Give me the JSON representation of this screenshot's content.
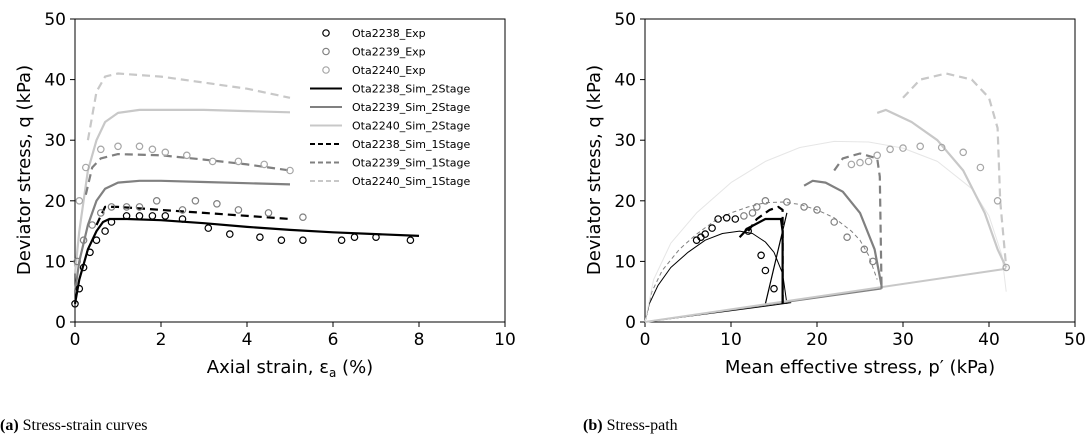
{
  "chart_data": [
    {
      "type": "line",
      "caption_label": "(a)",
      "caption_text": "Stress-strain curves",
      "xlabel": "Axial strain, ε",
      "xlabel_sub": "a",
      "xlabel_unit": " (%)",
      "ylabel": "Deviator stress, q (kPa)",
      "xlim": [
        0,
        10
      ],
      "ylim": [
        0,
        50
      ],
      "xticks": [
        "0",
        "2",
        "4",
        "6",
        "8",
        "10"
      ],
      "yticks": [
        "0",
        "10",
        "20",
        "30",
        "40",
        "50"
      ],
      "legend_position": "upper-right",
      "series": [
        {
          "name": "Ota2238_Exp",
          "kind": "marker",
          "color": "#000000",
          "x": [
            0,
            0.1,
            0.2,
            0.35,
            0.5,
            0.7,
            0.85,
            1.2,
            1.5,
            1.8,
            2.1,
            2.5,
            3.1,
            3.6,
            4.3,
            4.8,
            5.3,
            6.2,
            6.5,
            7.0,
            7.8
          ],
          "y": [
            3,
            5.5,
            9,
            11.5,
            13.5,
            15,
            16.5,
            17.5,
            17.5,
            17.5,
            17.5,
            17,
            15.5,
            14.5,
            14,
            13.5,
            13.5,
            13.5,
            14,
            14,
            13.5
          ]
        },
        {
          "name": "Ota2239_Exp",
          "kind": "marker",
          "color": "#808080",
          "x": [
            0.05,
            0.2,
            0.4,
            0.6,
            0.85,
            1.2,
            1.5,
            1.9,
            2.5,
            2.8,
            3.3,
            3.8,
            4.5,
            5.3
          ],
          "y": [
            10,
            13.5,
            16,
            18,
            19,
            19,
            19,
            20,
            18.5,
            20,
            19.5,
            18.5,
            18,
            17.3
          ]
        },
        {
          "name": "Ota2240_Exp",
          "kind": "marker",
          "color": "#a6a6a6",
          "x": [
            0.1,
            0.25,
            0.6,
            1.0,
            1.5,
            1.8,
            2.1,
            2.6,
            3.2,
            3.8,
            4.4,
            5.0
          ],
          "y": [
            20,
            25.5,
            28.5,
            29,
            29,
            28.5,
            28,
            27.5,
            26.5,
            26.5,
            26,
            25
          ],
          "alt_color": "#8c8c8c"
        },
        {
          "name": "Ota2238_Sim_2Stage",
          "kind": "line",
          "dash": "",
          "color": "#000000",
          "x": [
            0,
            0.1,
            0.3,
            0.5,
            0.65,
            0.8,
            1.2,
            2,
            3,
            4,
            5,
            6,
            7,
            8
          ],
          "y": [
            3,
            7,
            12,
            15,
            16.5,
            17,
            17,
            16.8,
            16.3,
            15.7,
            15.2,
            14.8,
            14.5,
            14.2
          ]
        },
        {
          "name": "Ota2239_Sim_2Stage",
          "kind": "line",
          "dash": "",
          "color": "#808080",
          "x": [
            0,
            0.1,
            0.3,
            0.5,
            0.7,
            1,
            1.5,
            2,
            3,
            4,
            5
          ],
          "y": [
            5,
            10,
            16,
            20,
            22,
            23,
            23.3,
            23.3,
            23.1,
            22.9,
            22.7
          ]
        },
        {
          "name": "Ota2240_Sim_2Stage",
          "kind": "line",
          "dash": "",
          "color": "#c8c8c8",
          "x": [
            0,
            0.1,
            0.3,
            0.5,
            0.7,
            1,
            1.5,
            2,
            3,
            4,
            5
          ],
          "y": [
            8,
            15,
            25,
            30,
            33,
            34.5,
            35,
            35,
            35,
            34.8,
            34.6
          ]
        },
        {
          "name": "Ota2238_Sim_1Stage",
          "kind": "line",
          "dash": "8,5",
          "color": "#000000",
          "x": [
            0.5,
            0.7,
            1,
            2,
            3,
            4,
            5
          ],
          "y": [
            16,
            19,
            19,
            18.5,
            18,
            17.5,
            17
          ]
        },
        {
          "name": "Ota2239_Sim_1Stage",
          "kind": "line",
          "dash": "8,5",
          "color": "#808080",
          "x": [
            0.25,
            0.4,
            0.6,
            1,
            2,
            3,
            4,
            5
          ],
          "y": [
            21,
            25.5,
            27,
            27.7,
            27.5,
            26.8,
            26,
            25
          ]
        },
        {
          "name": "Ota2240_Sim_1Stage",
          "kind": "line",
          "dash": "8,5",
          "color": "#c8c8c8",
          "x": [
            0.3,
            0.5,
            0.7,
            1,
            2,
            3,
            4,
            5
          ],
          "y": [
            30,
            38,
            40.5,
            41,
            40.5,
            39.5,
            38.5,
            37
          ]
        }
      ]
    },
    {
      "type": "line",
      "caption_label": "(b)",
      "caption_text": "Stress-path",
      "xlabel": "Mean effective stress, p′ (kPa)",
      "ylabel": "Deviator stress, q (kPa)",
      "xlim": [
        0,
        50
      ],
      "ylim": [
        0,
        50
      ],
      "xticks": [
        "0",
        "10",
        "20",
        "30",
        "40",
        "50"
      ],
      "yticks": [
        "0",
        "10",
        "20",
        "30",
        "40",
        "50"
      ],
      "series": [
        {
          "kind": "line",
          "dash": "",
          "color": "#000000",
          "width": 1,
          "x": [
            0,
            0.5,
            1.5,
            3,
            5,
            7,
            9,
            11,
            12.5,
            14,
            15,
            16,
            16.5
          ],
          "y": [
            0,
            3,
            6,
            9,
            11.5,
            13.5,
            14.6,
            15,
            14.6,
            13.2,
            11.5,
            8,
            3
          ]
        },
        {
          "kind": "line",
          "dash": "4,3",
          "color": "#808080",
          "width": 1,
          "x": [
            0,
            0.8,
            2,
            4,
            6,
            8,
            10,
            12,
            14,
            16,
            18,
            20,
            22,
            24,
            25,
            26,
            27
          ],
          "y": [
            0,
            5,
            8.5,
            12,
            14.5,
            16.6,
            18,
            19,
            19.7,
            19.8,
            19.4,
            18.5,
            17.2,
            15,
            13.5,
            11,
            7
          ]
        },
        {
          "kind": "line",
          "dash": "",
          "color": "#e6e6e6",
          "width": 1,
          "x": [
            0,
            1,
            3,
            6,
            10,
            14,
            18,
            22,
            26,
            30,
            34,
            38,
            40,
            41.5,
            42
          ],
          "y": [
            0,
            7,
            13,
            18,
            23,
            26.5,
            28.8,
            29.8,
            29.7,
            28.7,
            26.5,
            22,
            17.5,
            11,
            5
          ]
        },
        {
          "kind": "line",
          "dash": "",
          "color": "#000000",
          "width": 1.2,
          "x": [
            14,
            16.5
          ],
          "y": [
            3,
            18
          ]
        },
        {
          "kind": "line",
          "dash": "",
          "color": "#000000",
          "width": 1,
          "x": [
            0,
            15,
            17
          ],
          "y": [
            0,
            2.8,
            3.2
          ]
        },
        {
          "kind": "line",
          "dash": "",
          "color": "#808080",
          "width": 1.5,
          "x": [
            0,
            27.5
          ],
          "y": [
            0,
            5.5
          ]
        },
        {
          "kind": "line",
          "dash": "",
          "color": "#c8c8c8",
          "width": 2,
          "x": [
            0,
            42
          ],
          "y": [
            0,
            8.8
          ]
        },
        {
          "kind": "line",
          "dash": "",
          "color": "#000000",
          "width": 2.2,
          "x": [
            11,
            12,
            14,
            15.8,
            16,
            16,
            16
          ],
          "y": [
            14,
            15.5,
            17,
            17,
            15,
            8,
            3
          ]
        },
        {
          "kind": "line",
          "dash": "",
          "color": "#808080",
          "width": 2.2,
          "x": [
            18.5,
            19.5,
            21,
            23,
            25,
            26.7,
            27.5,
            27.5
          ],
          "y": [
            22.5,
            23.3,
            23,
            21.5,
            18,
            12,
            6,
            5.5
          ]
        },
        {
          "kind": "line",
          "dash": "",
          "color": "#c8c8c8",
          "width": 2.2,
          "x": [
            27,
            28,
            31,
            34,
            37,
            39.5,
            41,
            42
          ],
          "y": [
            34.5,
            35,
            33,
            30,
            25,
            18,
            12,
            9
          ]
        },
        {
          "kind": "line",
          "dash": "8,5",
          "color": "#000000",
          "width": 2.2,
          "x": [
            12,
            13,
            14.5,
            15.5,
            16,
            16
          ],
          "y": [
            15,
            17,
            18.5,
            19,
            18.5,
            3
          ]
        },
        {
          "kind": "line",
          "dash": "8,5",
          "color": "#808080",
          "width": 2.2,
          "x": [
            22,
            23,
            25,
            27,
            27.3,
            27.5
          ],
          "y": [
            25,
            27,
            27.8,
            27,
            24,
            6
          ]
        },
        {
          "kind": "line",
          "dash": "8,5",
          "color": "#c8c8c8",
          "width": 2.2,
          "x": [
            30,
            32,
            35,
            38,
            40,
            41,
            41.3,
            42
          ],
          "y": [
            37,
            40,
            41,
            40,
            37,
            32,
            20,
            9
          ]
        },
        {
          "kind": "marker",
          "color": "#000000",
          "x": [
            6,
            6.5,
            7,
            7.8,
            8.5,
            9.5,
            10.5,
            12,
            13.5,
            14,
            15
          ],
          "y": [
            13.5,
            14,
            14.5,
            15.5,
            17,
            17.2,
            17,
            15,
            11,
            8.5,
            5.5
          ]
        },
        {
          "kind": "marker",
          "color": "#808080",
          "x": [
            11.5,
            12.5,
            13,
            14,
            16.5,
            18.5,
            20,
            22,
            23.5,
            25.5,
            26.5
          ],
          "y": [
            17.5,
            18,
            19,
            20,
            19.8,
            19,
            18.5,
            16.5,
            14,
            12,
            10
          ]
        },
        {
          "kind": "marker",
          "color": "#a6a6a6",
          "x": [
            24,
            25,
            26,
            27,
            28.5,
            30,
            32,
            34.5,
            37,
            39,
            41,
            42
          ],
          "y": [
            26,
            26.3,
            26.5,
            27.5,
            28.5,
            28.7,
            29,
            28.8,
            28,
            25.5,
            20,
            9
          ]
        }
      ]
    }
  ]
}
